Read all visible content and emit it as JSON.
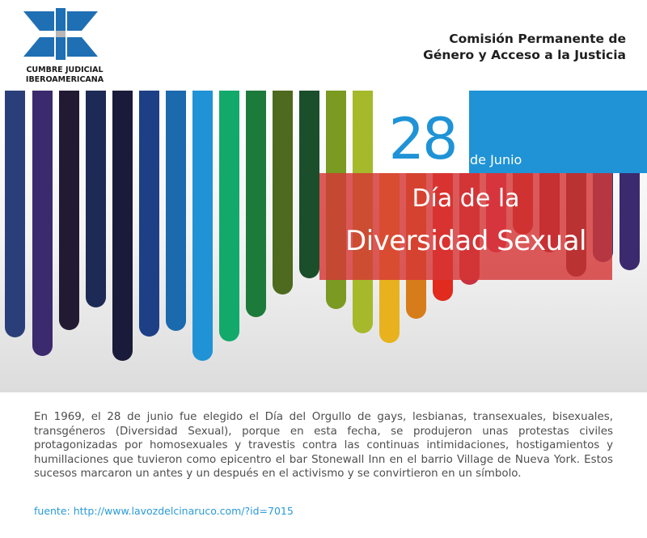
{
  "logo": {
    "line1": "CUMBRE JUDICIAL",
    "line2": "IBEROAMERICANA",
    "primary_color": "#1f6fb4",
    "accent_color": "#b7b7b7"
  },
  "header": {
    "commission_line1": "Comisión Permanente de",
    "commission_line2": "Género y Acceso a la Justicia"
  },
  "date": {
    "day": "28",
    "month": "de Junio",
    "color": "#1f93d6"
  },
  "title": {
    "line1": "Día de la",
    "line2": "Diversidad Sexual",
    "box_color": "#d63636"
  },
  "bar_colors": [
    "#2a3f7a",
    "#3b2a6e",
    "#221a33",
    "#1c2a55",
    "#1a1a3a",
    "#1d3f86",
    "#1a6aad",
    "#1f93d6",
    "#12a96a",
    "#1c7a3a",
    "#4d6a1e",
    "#1b4e2b",
    "#7a9a22",
    "#a6b92b",
    "#e7b21d",
    "#d77c1a",
    "#e02b1e",
    "#c83240",
    "#d9365e",
    "#b82123",
    "#7e1a2a",
    "#3f2226"
  ],
  "body": {
    "paragraph": "En 1969, el 28 de junio fue elegido el Día del Orgullo de gays, lesbianas, transexuales, bisexuales, transgéneros (Diversidad Sexual), porque en esta fecha, se produjeron unas protestas civiles protagonizadas por homosexuales y travestis contra las continuas intimidaciones, hostigamientos y humillaciones que tuvieron como epicentro el bar Stonewall  Inn en el  barrio Village de Nueva York. Estos sucesos marcaron un antes y un después en el activismo y se convirtieron en un símbolo.",
    "source": "fuente: http://www.lavozdelcinaruco.com/?id=7015"
  }
}
